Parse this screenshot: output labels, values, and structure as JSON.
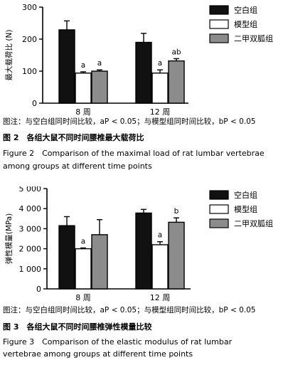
{
  "figures": [
    {
      "note": "图注：与空白组同时间比较，aP < 0.05；与模型组同时间比较，bP < 0.05",
      "title_cn": "图 2　各组大鼠不同时间腰椎最大载荷比",
      "title_en_1": "Figure 2　Comparison of the maximal load of rat lumbar vertebrae",
      "title_en_2": "among groups at different time points"
    },
    {
      "note": "图注：与空白组同时间比较，aP < 0.05；与模型组同时间比较，bP < 0.05",
      "title_cn": "图 3　各组大鼠不同时间腰椎弹性模量比较",
      "title_en_1": "Figure 3　Comparison of the elastic modulus of rat lumbar",
      "title_en_2": "vertebrae among groups at different time points"
    }
  ],
  "chart_data": [
    {
      "type": "bar",
      "ylabel": "最大载荷比 (N)",
      "ylim": [
        0,
        300
      ],
      "yticks": [
        0,
        100,
        200,
        300
      ],
      "ytick_labels": [
        "0",
        "100",
        "200",
        "300"
      ],
      "categories": [
        "8 周",
        "12 周"
      ],
      "series": [
        {
          "name": "空白组",
          "color": "#111111",
          "values": [
            229,
            190
          ],
          "errors": [
            28,
            28
          ],
          "labels": [
            "",
            ""
          ]
        },
        {
          "name": "模型组",
          "color": "#ffffff",
          "values": [
            94,
            94
          ],
          "errors": [
            4,
            10
          ],
          "labels": [
            "a",
            "a"
          ]
        },
        {
          "name": "二甲双胍组",
          "color": "#8c8c8c",
          "values": [
            100,
            132
          ],
          "errors": [
            4,
            7
          ],
          "labels": [
            "a",
            "ab"
          ]
        }
      ],
      "legend_position": "top-right"
    },
    {
      "type": "bar",
      "ylabel": "弹性模量(MPa)",
      "ylim": [
        0,
        5000
      ],
      "yticks": [
        0,
        1000,
        2000,
        3000,
        4000,
        5000
      ],
      "ytick_labels": [
        "0",
        "1 000",
        "2 000",
        "3 000",
        "4 000",
        "5 000"
      ],
      "categories": [
        "8 周",
        "12 周"
      ],
      "series": [
        {
          "name": "空白组",
          "color": "#111111",
          "values": [
            3150,
            3780
          ],
          "errors": [
            450,
            180
          ],
          "labels": [
            "",
            ""
          ]
        },
        {
          "name": "模型组",
          "color": "#ffffff",
          "values": [
            2000,
            2200
          ],
          "errors": [
            40,
            150
          ],
          "labels": [
            "a",
            "a"
          ]
        },
        {
          "name": "二甲双胍组",
          "color": "#8c8c8c",
          "values": [
            2700,
            3320
          ],
          "errors": [
            750,
            220
          ],
          "labels": [
            "",
            "b"
          ]
        }
      ],
      "legend_position": "top-right"
    }
  ]
}
